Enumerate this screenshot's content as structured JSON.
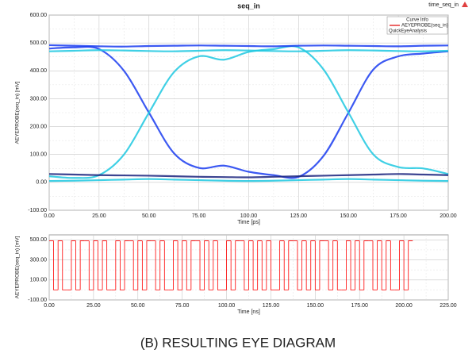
{
  "caption": "(B) RESULTING EYE DIAGRAM",
  "chart_data": [
    {
      "type": "line",
      "title": "seq_in",
      "annotation": "time_seq_in",
      "x_label": "Time [ps]",
      "y_label": "AEYEPROBE(seq_in) [mV]",
      "legend": {
        "title": "Curve Info",
        "entries": [
          {
            "name": "AEYEPROBE(seq_in)",
            "color": "#e00000"
          },
          {
            "name": "QuickEyeAnalysis"
          }
        ]
      },
      "grid": true,
      "xlim": [
        0,
        200
      ],
      "xticks": [
        {
          "value": 0,
          "label": "0.00"
        },
        {
          "value": 25,
          "label": "25.00"
        },
        {
          "value": 50,
          "label": "50.00"
        },
        {
          "value": 75,
          "label": "75.00"
        },
        {
          "value": 100,
          "label": "100.00"
        },
        {
          "value": 125,
          "label": "125.00"
        },
        {
          "value": 150,
          "label": "150.00"
        },
        {
          "value": 175,
          "label": "175.00"
        },
        {
          "value": 200,
          "label": "200.00"
        }
      ],
      "ylim": [
        -100,
        600
      ],
      "yticks": [
        {
          "value": -100,
          "label": "-100.00"
        },
        {
          "value": 0,
          "label": "0.00"
        },
        {
          "value": 100,
          "label": "100.00"
        },
        {
          "value": 200,
          "label": "200.00"
        },
        {
          "value": 300,
          "label": "300.00"
        },
        {
          "value": 400,
          "label": "400.00"
        },
        {
          "value": 500,
          "label": "500.00"
        },
        {
          "value": 600,
          "label": "600.00"
        }
      ],
      "x": [
        0,
        12.5,
        25,
        37.5,
        50,
        62.5,
        75,
        87.5,
        100,
        112.5,
        125,
        137.5,
        150,
        162.5,
        175,
        187.5,
        200
      ],
      "series": [
        {
          "color": "#1a3cf0",
          "values": [
            480,
            484,
            478,
            400,
            250,
            105,
            52,
            60,
            38,
            26,
            20,
            95,
            250,
            405,
            452,
            462,
            470
          ]
        },
        {
          "color": "#1fc8e0",
          "values": [
            22,
            16,
            26,
            100,
            250,
            395,
            452,
            440,
            468,
            478,
            484,
            405,
            250,
            100,
            55,
            50,
            30
          ]
        },
        {
          "color": "#1a3cf0",
          "values": [
            492,
            490,
            488,
            487,
            489,
            490,
            491,
            490,
            489,
            488,
            490,
            491,
            490,
            489,
            488,
            490,
            491
          ]
        },
        {
          "color": "#1fc8e0",
          "values": [
            470,
            472,
            474,
            473,
            471,
            470,
            472,
            474,
            473,
            471,
            470,
            472,
            474,
            473,
            471,
            470,
            472
          ]
        },
        {
          "color": "#1a237e",
          "values": [
            30,
            28,
            26,
            25,
            24,
            22,
            20,
            19,
            18,
            20,
            22,
            24,
            26,
            28,
            30,
            28,
            26
          ]
        },
        {
          "color": "#1fc8e0",
          "values": [
            5,
            6,
            8,
            10,
            12,
            10,
            8,
            6,
            5,
            6,
            8,
            10,
            12,
            10,
            8,
            6,
            5
          ]
        }
      ]
    },
    {
      "type": "line",
      "step": true,
      "x_label": "Time [ns]",
      "y_label": "AEYEPROBE(seq_in) [mV]",
      "grid": true,
      "xlim": [
        0,
        225
      ],
      "xticks": [
        {
          "value": 0,
          "label": "0.00"
        },
        {
          "value": 25,
          "label": "25.00"
        },
        {
          "value": 50,
          "label": "50.00"
        },
        {
          "value": 75,
          "label": "75.00"
        },
        {
          "value": 100,
          "label": "100.00"
        },
        {
          "value": 125,
          "label": "125.00"
        },
        {
          "value": 150,
          "label": "150.00"
        },
        {
          "value": 175,
          "label": "175.00"
        },
        {
          "value": 200,
          "label": "200.00"
        },
        {
          "value": 225,
          "label": "225.00"
        }
      ],
      "ylim": [
        -100,
        550
      ],
      "yticks": [
        {
          "value": -100,
          "label": "-100.00"
        },
        {
          "value": 100,
          "label": "100.00"
        },
        {
          "value": 300,
          "label": "300.00"
        },
        {
          "value": 500,
          "label": "500.00"
        }
      ],
      "x": [
        0,
        2.5,
        5,
        7.5,
        10,
        12.5,
        15,
        17.5,
        20,
        22.5,
        25,
        27.5,
        30,
        32.5,
        35,
        37.5,
        40,
        42.5,
        45,
        47.5,
        50,
        52.5,
        55,
        57.5,
        60,
        62.5,
        65,
        67.5,
        70,
        72.5,
        75,
        77.5,
        80,
        82.5,
        85,
        87.5,
        90,
        92.5,
        95,
        97.5,
        100,
        102.5,
        105,
        107.5,
        110,
        112.5,
        115,
        117.5,
        120,
        122.5,
        125,
        127.5,
        130,
        132.5,
        135,
        137.5,
        140,
        142.5,
        145,
        147.5,
        150,
        152.5,
        155,
        157.5,
        160,
        162.5,
        165,
        167.5,
        170,
        172.5,
        175,
        177.5,
        180,
        182.5,
        185,
        187.5,
        190,
        192.5,
        195,
        197.5,
        200,
        202.5,
        205
      ],
      "series": [
        {
          "color": "#ff0000",
          "values": [
            490,
            0,
            490,
            0,
            0,
            490,
            0,
            490,
            490,
            0,
            490,
            0,
            490,
            0,
            0,
            490,
            0,
            490,
            490,
            0,
            490,
            0,
            490,
            490,
            0,
            490,
            0,
            0,
            490,
            0,
            490,
            0,
            490,
            490,
            0,
            490,
            0,
            490,
            0,
            0,
            490,
            0,
            490,
            490,
            0,
            490,
            0,
            490,
            0,
            490,
            0,
            0,
            490,
            0,
            490,
            490,
            0,
            490,
            0,
            490,
            0,
            490,
            490,
            0,
            490,
            0,
            0,
            490,
            0,
            490,
            0,
            490,
            490,
            0,
            490,
            0,
            490,
            0,
            0,
            490,
            0,
            490,
            490
          ]
        }
      ]
    }
  ]
}
